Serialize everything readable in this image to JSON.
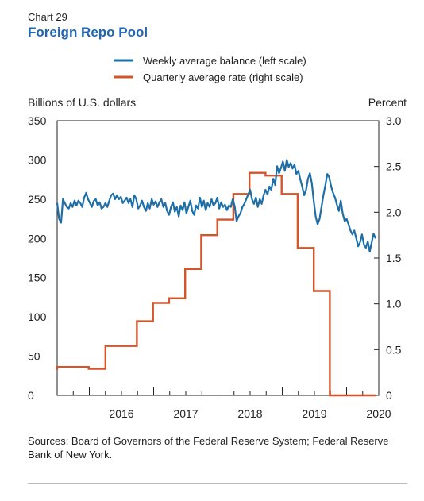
{
  "header": {
    "chart_number": "Chart 29",
    "title": "Foreign Repo Pool"
  },
  "source": "Sources: Board of Governors of the Federal Reserve System; Federal Reserve Bank of New York.",
  "colors": {
    "balance": "#1e6fa8",
    "rate": "#d4542b",
    "title": "#1f66b3",
    "axis": "#222222"
  },
  "chart_data": {
    "type": "line",
    "left_axis": {
      "label": "Billions of U.S. dollars",
      "ticks": [
        "350",
        "300",
        "250",
        "200",
        "150",
        "100",
        "50",
        "0"
      ],
      "range": [
        0,
        350
      ]
    },
    "right_axis": {
      "label": "Percent",
      "ticks": [
        "3.0",
        "2.5",
        "2.0",
        "1.5",
        "1.0",
        "0.5",
        "0"
      ],
      "range": [
        0,
        3.0
      ]
    },
    "x_axis": {
      "ticks": [
        "2016",
        "2017",
        "2018",
        "2019",
        "2020"
      ],
      "range": [
        2015.5,
        2020.5
      ]
    },
    "series": [
      {
        "name": "Weekly average balance (left scale)",
        "axis": "left",
        "points": [
          [
            2015.5,
            245
          ],
          [
            2015.53,
            225
          ],
          [
            2015.56,
            220
          ],
          [
            2015.59,
            250
          ],
          [
            2015.62,
            245
          ],
          [
            2015.65,
            240
          ],
          [
            2015.68,
            238
          ],
          [
            2015.71,
            245
          ],
          [
            2015.74,
            240
          ],
          [
            2015.77,
            248
          ],
          [
            2015.8,
            242
          ],
          [
            2015.83,
            248
          ],
          [
            2015.86,
            245
          ],
          [
            2015.89,
            240
          ],
          [
            2015.92,
            252
          ],
          [
            2015.95,
            258
          ],
          [
            2015.98,
            250
          ],
          [
            2016.01,
            245
          ],
          [
            2016.04,
            240
          ],
          [
            2016.07,
            248
          ],
          [
            2016.1,
            250
          ],
          [
            2016.13,
            242
          ],
          [
            2016.16,
            246
          ],
          [
            2016.19,
            238
          ],
          [
            2016.22,
            240
          ],
          [
            2016.25,
            245
          ],
          [
            2016.28,
            240
          ],
          [
            2016.31,
            248
          ],
          [
            2016.34,
            255
          ],
          [
            2016.37,
            257
          ],
          [
            2016.4,
            250
          ],
          [
            2016.43,
            255
          ],
          [
            2016.46,
            250
          ],
          [
            2016.49,
            253
          ],
          [
            2016.52,
            245
          ],
          [
            2016.55,
            248
          ],
          [
            2016.58,
            252
          ],
          [
            2016.61,
            245
          ],
          [
            2016.64,
            250
          ],
          [
            2016.67,
            240
          ],
          [
            2016.7,
            255
          ],
          [
            2016.73,
            250
          ],
          [
            2016.76,
            238
          ],
          [
            2016.79,
            242
          ],
          [
            2016.82,
            248
          ],
          [
            2016.85,
            240
          ],
          [
            2016.88,
            235
          ],
          [
            2016.91,
            245
          ],
          [
            2016.94,
            238
          ],
          [
            2016.97,
            250
          ],
          [
            2017.0,
            243
          ],
          [
            2017.03,
            247
          ],
          [
            2017.06,
            240
          ],
          [
            2017.09,
            246
          ],
          [
            2017.12,
            250
          ],
          [
            2017.15,
            240
          ],
          [
            2017.18,
            245
          ],
          [
            2017.21,
            235
          ],
          [
            2017.24,
            230
          ],
          [
            2017.27,
            240
          ],
          [
            2017.3,
            246
          ],
          [
            2017.33,
            234
          ],
          [
            2017.36,
            240
          ],
          [
            2017.39,
            228
          ],
          [
            2017.42,
            242
          ],
          [
            2017.45,
            236
          ],
          [
            2017.48,
            246
          ],
          [
            2017.51,
            232
          ],
          [
            2017.54,
            240
          ],
          [
            2017.57,
            248
          ],
          [
            2017.6,
            235
          ],
          [
            2017.63,
            230
          ],
          [
            2017.66,
            242
          ],
          [
            2017.69,
            238
          ],
          [
            2017.72,
            252
          ],
          [
            2017.75,
            240
          ],
          [
            2017.78,
            248
          ],
          [
            2017.81,
            236
          ],
          [
            2017.84,
            245
          ],
          [
            2017.87,
            240
          ],
          [
            2017.9,
            250
          ],
          [
            2017.93,
            242
          ],
          [
            2017.96,
            245
          ],
          [
            2017.99,
            252
          ],
          [
            2018.02,
            238
          ],
          [
            2018.05,
            246
          ],
          [
            2018.08,
            240
          ],
          [
            2018.11,
            243
          ],
          [
            2018.14,
            236
          ],
          [
            2018.17,
            242
          ],
          [
            2018.2,
            240
          ],
          [
            2018.23,
            250
          ],
          [
            2018.26,
            241
          ],
          [
            2018.29,
            222
          ],
          [
            2018.32,
            228
          ],
          [
            2018.35,
            232
          ],
          [
            2018.38,
            240
          ],
          [
            2018.41,
            244
          ],
          [
            2018.44,
            250
          ],
          [
            2018.47,
            256
          ],
          [
            2018.5,
            262
          ],
          [
            2018.53,
            250
          ],
          [
            2018.56,
            244
          ],
          [
            2018.59,
            252
          ],
          [
            2018.62,
            240
          ],
          [
            2018.65,
            250
          ],
          [
            2018.68,
            244
          ],
          [
            2018.71,
            255
          ],
          [
            2018.74,
            262
          ],
          [
            2018.77,
            256
          ],
          [
            2018.8,
            266
          ],
          [
            2018.83,
            262
          ],
          [
            2018.86,
            276
          ],
          [
            2018.89,
            268
          ],
          [
            2018.92,
            292
          ],
          [
            2018.95,
            283
          ],
          [
            2018.98,
            290
          ],
          [
            2019.01,
            298
          ],
          [
            2019.04,
            286
          ],
          [
            2019.07,
            300
          ],
          [
            2019.1,
            291
          ],
          [
            2019.13,
            296
          ],
          [
            2019.16,
            289
          ],
          [
            2019.19,
            294
          ],
          [
            2019.22,
            282
          ],
          [
            2019.25,
            286
          ],
          [
            2019.28,
            275
          ],
          [
            2019.31,
            266
          ],
          [
            2019.34,
            255
          ],
          [
            2019.37,
            262
          ],
          [
            2019.4,
            276
          ],
          [
            2019.43,
            283
          ],
          [
            2019.46,
            270
          ],
          [
            2019.49,
            247
          ],
          [
            2019.52,
            228
          ],
          [
            2019.55,
            218
          ],
          [
            2019.58,
            225
          ],
          [
            2019.61,
            240
          ],
          [
            2019.64,
            255
          ],
          [
            2019.67,
            268
          ],
          [
            2019.7,
            282
          ],
          [
            2019.73,
            278
          ],
          [
            2019.76,
            266
          ],
          [
            2019.79,
            258
          ],
          [
            2019.82,
            252
          ],
          [
            2019.85,
            243
          ],
          [
            2019.88,
            235
          ],
          [
            2019.91,
            248
          ],
          [
            2019.94,
            232
          ],
          [
            2019.97,
            222
          ],
          [
            2020.0,
            225
          ],
          [
            2020.03,
            218
          ],
          [
            2020.06,
            210
          ],
          [
            2020.09,
            205
          ],
          [
            2020.12,
            210
          ],
          [
            2020.15,
            200
          ],
          [
            2020.18,
            190
          ],
          [
            2020.21,
            195
          ],
          [
            2020.24,
            205
          ],
          [
            2020.27,
            192
          ],
          [
            2020.3,
            188
          ],
          [
            2020.33,
            196
          ],
          [
            2020.36,
            183
          ],
          [
            2020.39,
            195
          ],
          [
            2020.42,
            206
          ],
          [
            2020.45,
            200
          ]
        ]
      },
      {
        "name": "Quarterly average rate (right scale)",
        "axis": "right",
        "steps": [
          [
            2015.5,
            0.28
          ],
          [
            2015.99,
            0.31
          ],
          [
            2016.25,
            0.29
          ],
          [
            2016.46,
            0.54
          ],
          [
            2016.74,
            0.54
          ],
          [
            2016.75,
            0.81
          ],
          [
            2016.99,
            0.81
          ],
          [
            2017.0,
            1.01
          ],
          [
            2017.24,
            1.01
          ],
          [
            2017.25,
            1.06
          ],
          [
            2017.49,
            1.06
          ],
          [
            2017.5,
            1.38
          ],
          [
            2017.74,
            1.38
          ],
          [
            2017.75,
            1.75
          ],
          [
            2017.99,
            1.75
          ],
          [
            2018.0,
            1.92
          ],
          [
            2018.24,
            1.92
          ],
          [
            2018.25,
            2.2
          ],
          [
            2018.49,
            2.2
          ],
          [
            2018.5,
            2.43
          ],
          [
            2018.74,
            2.43
          ],
          [
            2018.75,
            2.4
          ],
          [
            2018.99,
            2.4
          ],
          [
            2019.0,
            2.2
          ],
          [
            2019.24,
            2.2
          ],
          [
            2019.25,
            1.61
          ],
          [
            2019.49,
            1.61
          ],
          [
            2019.5,
            1.14
          ],
          [
            2019.74,
            1.14
          ],
          [
            2019.75,
            0.0
          ],
          [
            2020.45,
            0.0
          ]
        ]
      }
    ]
  }
}
